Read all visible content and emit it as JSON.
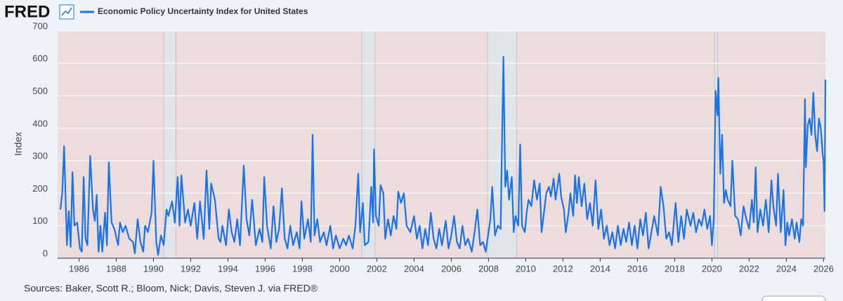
{
  "logo": "FRED",
  "chart_data": {
    "type": "line",
    "y_label": "Index",
    "source": "Sources: Baker, Scott R.; Bloom, Nick; Davis, Steven J. via FRED®",
    "xlim": [
      1984.85,
      2026.1
    ],
    "ylim": [
      0,
      700
    ],
    "xticks": [
      1986,
      1988,
      1990,
      1992,
      1994,
      1996,
      1998,
      2000,
      2002,
      2004,
      2006,
      2008,
      2010,
      2012,
      2014,
      2016,
      2018,
      2020,
      2022,
      2024,
      2026
    ],
    "yticks": [
      0,
      100,
      200,
      300,
      400,
      500,
      600,
      700
    ],
    "grid": true,
    "shaded_ranges": [
      [
        1990.55,
        1991.2
      ],
      [
        2001.2,
        2001.9
      ],
      [
        2007.95,
        2009.5
      ],
      [
        2020.15,
        2020.3
      ]
    ],
    "series": [
      {
        "name": "Economic Policy Uncertainty Index for United States",
        "color": "#1a73e8",
        "x": [
          1985.0,
          1985.1,
          1985.2,
          1985.35,
          1985.45,
          1985.55,
          1985.65,
          1985.75,
          1985.9,
          1986.05,
          1986.15,
          1986.25,
          1986.35,
          1986.45,
          1986.6,
          1986.75,
          1986.85,
          1986.95,
          1987.05,
          1987.15,
          1987.25,
          1987.4,
          1987.5,
          1987.6,
          1987.75,
          1987.9,
          1988.1,
          1988.2,
          1988.35,
          1988.5,
          1988.7,
          1988.9,
          1989.0,
          1989.15,
          1989.3,
          1989.45,
          1989.55,
          1989.7,
          1989.9,
          1990.0,
          1990.15,
          1990.25,
          1990.4,
          1990.55,
          1990.7,
          1990.8,
          1991.0,
          1991.15,
          1991.3,
          1991.4,
          1991.5,
          1991.7,
          1991.85,
          1992.0,
          1992.2,
          1992.35,
          1992.5,
          1992.7,
          1992.85,
          1993.0,
          1993.1,
          1993.3,
          1993.5,
          1993.6,
          1993.7,
          1993.9,
          1994.05,
          1994.2,
          1994.35,
          1994.5,
          1994.65,
          1994.85,
          1995.0,
          1995.15,
          1995.3,
          1995.5,
          1995.7,
          1995.85,
          1995.95,
          1996.1,
          1996.3,
          1996.45,
          1996.6,
          1996.75,
          1996.9,
          1997.05,
          1997.2,
          1997.35,
          1997.5,
          1997.7,
          1997.85,
          1997.95,
          1998.1,
          1998.3,
          1998.45,
          1998.55,
          1998.65,
          1998.8,
          1998.95,
          1999.15,
          1999.3,
          1999.5,
          1999.65,
          1999.8,
          2000.0,
          2000.2,
          2000.35,
          2000.5,
          2000.7,
          2000.85,
          2001.0,
          2001.1,
          2001.25,
          2001.35,
          2001.55,
          2001.7,
          2001.8,
          2001.85,
          2001.95,
          2002.1,
          2002.2,
          2002.35,
          2002.45,
          2002.6,
          2002.75,
          2002.9,
          2003.05,
          2003.15,
          2003.3,
          2003.45,
          2003.6,
          2003.8,
          2004.0,
          2004.15,
          2004.3,
          2004.45,
          2004.6,
          2004.75,
          2004.9,
          2005.05,
          2005.2,
          2005.35,
          2005.5,
          2005.7,
          2005.85,
          2006.0,
          2006.15,
          2006.3,
          2006.45,
          2006.6,
          2006.75,
          2006.9,
          2007.1,
          2007.25,
          2007.4,
          2007.55,
          2007.7,
          2007.85,
          2008.0,
          2008.1,
          2008.2,
          2008.35,
          2008.5,
          2008.65,
          2008.8,
          2008.9,
          2009.0,
          2009.1,
          2009.25,
          2009.35,
          2009.45,
          2009.6,
          2009.7,
          2009.8,
          2009.95,
          2010.05,
          2010.15,
          2010.3,
          2010.45,
          2010.6,
          2010.75,
          2010.85,
          2011.0,
          2011.1,
          2011.25,
          2011.35,
          2011.5,
          2011.6,
          2011.8,
          2011.9,
          2012.05,
          2012.15,
          2012.3,
          2012.4,
          2012.55,
          2012.65,
          2012.75,
          2012.85,
          2013.0,
          2013.15,
          2013.3,
          2013.45,
          2013.6,
          2013.75,
          2013.9,
          2014.05,
          2014.2,
          2014.35,
          2014.5,
          2014.65,
          2014.8,
          2014.95,
          2015.1,
          2015.25,
          2015.4,
          2015.55,
          2015.7,
          2015.85,
          2016.0,
          2016.15,
          2016.3,
          2016.45,
          2016.6,
          2016.75,
          2016.9,
          2017.1,
          2017.25,
          2017.4,
          2017.55,
          2017.7,
          2017.85,
          2018.05,
          2018.2,
          2018.35,
          2018.5,
          2018.65,
          2018.85,
          2019.0,
          2019.15,
          2019.3,
          2019.45,
          2019.6,
          2019.75,
          2019.9,
          2020.0,
          2020.1,
          2020.2,
          2020.3,
          2020.35,
          2020.45,
          2020.55,
          2020.65,
          2020.75,
          2020.85,
          2021.0,
          2021.1,
          2021.25,
          2021.4,
          2021.55,
          2021.7,
          2021.85,
          2022.0,
          2022.15,
          2022.25,
          2022.35,
          2022.45,
          2022.6,
          2022.75,
          2022.9,
          2023.05,
          2023.2,
          2023.3,
          2023.45,
          2023.55,
          2023.7,
          2023.85,
          2023.95,
          2024.05,
          2024.15,
          2024.3,
          2024.45,
          2024.55,
          2024.7,
          2024.8,
          2024.9,
          2025.0,
          2025.05,
          2025.15,
          2025.25,
          2025.35,
          2025.45,
          2025.55,
          2025.65,
          2025.75,
          2025.85,
          2025.95,
          2026.0,
          2026.05,
          2026.1
        ],
        "values": [
          150,
          200,
          345,
          40,
          145,
          35,
          265,
          100,
          110,
          30,
          20,
          250,
          60,
          40,
          315,
          150,
          115,
          195,
          20,
          100,
          20,
          140,
          40,
          295,
          110,
          90,
          40,
          110,
          80,
          100,
          60,
          50,
          15,
          120,
          50,
          20,
          100,
          80,
          140,
          300,
          50,
          10,
          70,
          40,
          150,
          130,
          175,
          110,
          250,
          100,
          255,
          110,
          150,
          100,
          170,
          60,
          175,
          60,
          270,
          90,
          230,
          180,
          60,
          50,
          100,
          40,
          150,
          80,
          50,
          120,
          40,
          285,
          120,
          70,
          180,
          40,
          90,
          50,
          250,
          100,
          30,
          160,
          50,
          90,
          215,
          60,
          30,
          100,
          40,
          80,
          30,
          175,
          60,
          120,
          50,
          380,
          70,
          120,
          50,
          80,
          40,
          100,
          30,
          70,
          30,
          60,
          40,
          70,
          30,
          100,
          260,
          80,
          170,
          40,
          50,
          220,
          110,
          335,
          130,
          100,
          225,
          200,
          60,
          120,
          70,
          130,
          90,
          205,
          170,
          200,
          100,
          80,
          130,
          60,
          100,
          30,
          90,
          40,
          140,
          60,
          30,
          90,
          40,
          115,
          30,
          70,
          130,
          50,
          30,
          100,
          40,
          60,
          20,
          80,
          150,
          40,
          50,
          20,
          80,
          120,
          220,
          70,
          100,
          90,
          620,
          220,
          270,
          180,
          250,
          80,
          130,
          100,
          350,
          100,
          80,
          140,
          180,
          160,
          240,
          180,
          230,
          80,
          150,
          200,
          220,
          190,
          245,
          180,
          260,
          190,
          150,
          80,
          140,
          200,
          130,
          255,
          170,
          250,
          160,
          230,
          120,
          170,
          100,
          240,
          90,
          150,
          60,
          100,
          40,
          80,
          30,
          100,
          40,
          90,
          50,
          110,
          40,
          100,
          30,
          120,
          70,
          140,
          30,
          80,
          130,
          70,
          220,
          160,
          60,
          80,
          40,
          170,
          50,
          130,
          60,
          150,
          100,
          140,
          80,
          120,
          100,
          150,
          90,
          130,
          40,
          120,
          515,
          440,
          555,
          260,
          380,
          170,
          210,
          180,
          160,
          300,
          130,
          120,
          70,
          160,
          120,
          90,
          180,
          110,
          280,
          80,
          150,
          100,
          180,
          80,
          240,
          160,
          100,
          260,
          80,
          210,
          40,
          110,
          70,
          120,
          60,
          110,
          50,
          120,
          100,
          490,
          280,
          410,
          430,
          380,
          510,
          380,
          330,
          430,
          400,
          320,
          300,
          145,
          550
        ]
      }
    ]
  }
}
